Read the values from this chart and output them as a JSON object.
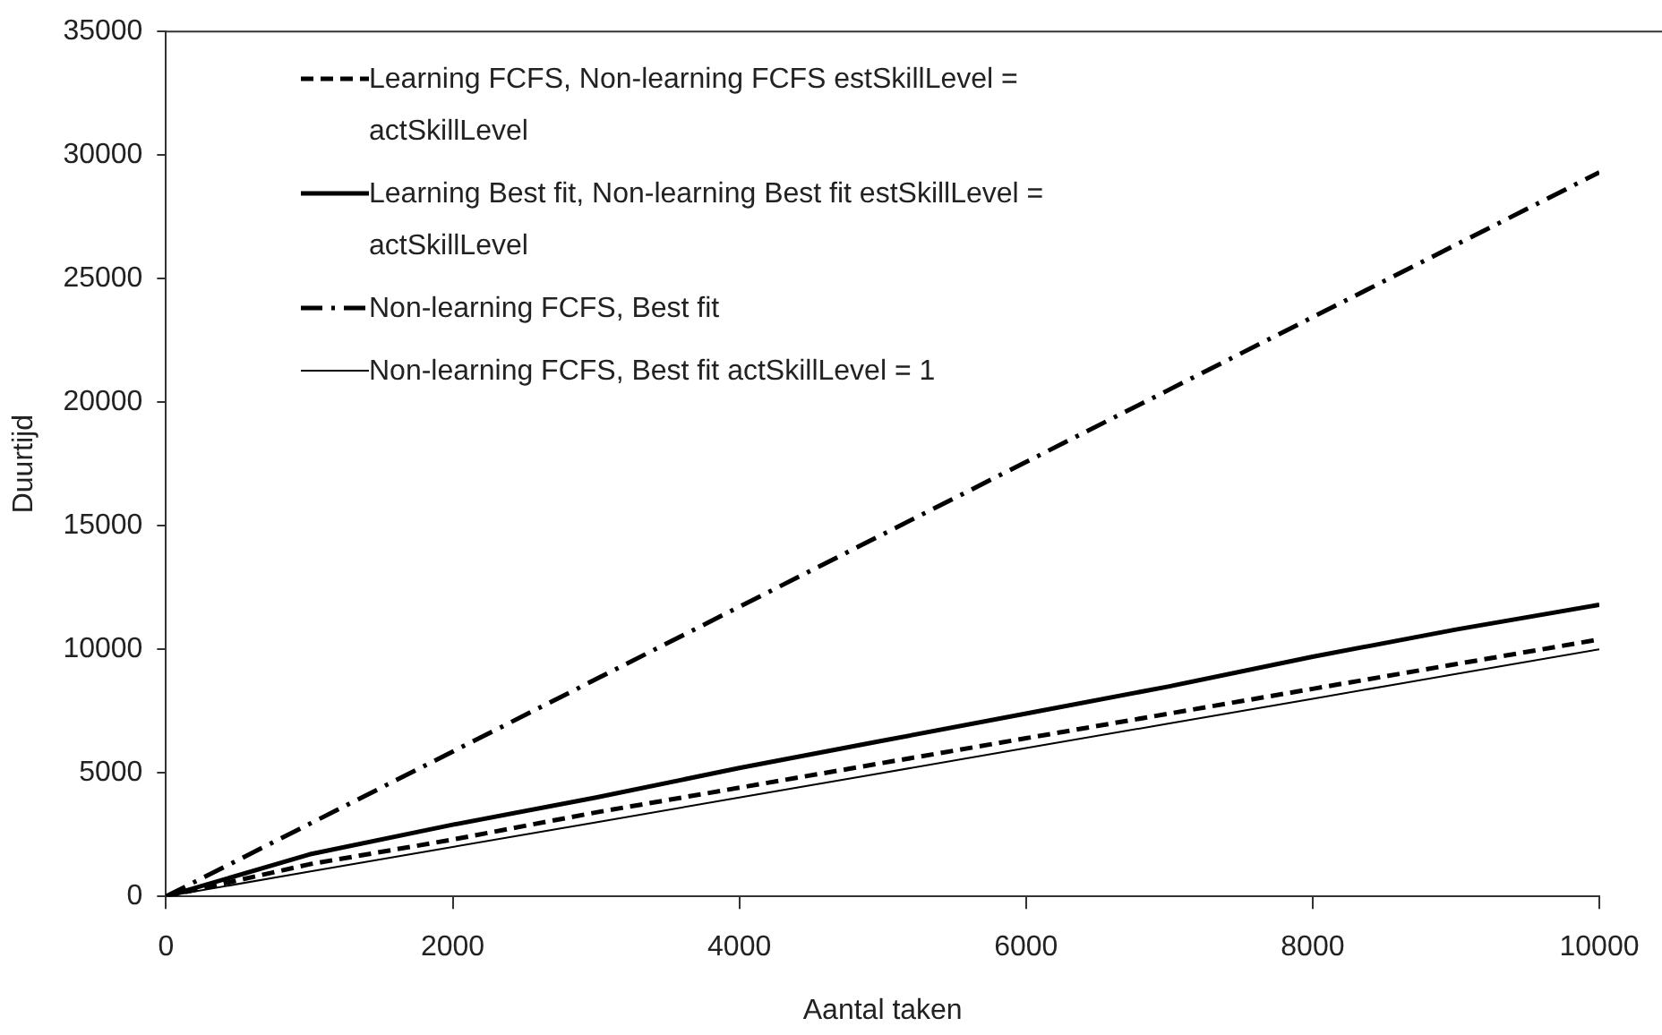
{
  "chart_data": {
    "type": "line",
    "xlabel": "Aantal taken",
    "ylabel": "Duurtijd",
    "x": [
      0,
      1000,
      2000,
      3000,
      4000,
      5000,
      6000,
      7000,
      8000,
      9000,
      10000
    ],
    "xlim": [
      0,
      10000
    ],
    "xticks": [
      0,
      2000,
      4000,
      6000,
      8000,
      10000
    ],
    "ylim": [
      0,
      35000
    ],
    "yticks": [
      0,
      5000,
      10000,
      15000,
      20000,
      25000,
      30000,
      35000
    ],
    "grid": false,
    "legend": "top left",
    "marker": "none",
    "series": [
      {
        "name": "Learning FCFS, Non-learning FCFS estSkillLevel = actSkillLevel",
        "color": "#000000",
        "line_style": "dashed",
        "values": [
          0,
          1300,
          2300,
          3400,
          4400,
          5400,
          6400,
          7400,
          8400,
          9400,
          10400
        ]
      },
      {
        "name": "Learning Best fit, Non-learning Best fit estSkillLevel = actSkillLevel",
        "color": "#000000",
        "line_style": "solid",
        "values": [
          0,
          1700,
          2900,
          4000,
          5200,
          6300,
          7400,
          8500,
          9700,
          10800,
          11800
        ]
      },
      {
        "name": "Non-learning FCFS, Best fit",
        "color": "#000000",
        "line_style": "dashdot",
        "values": [
          0,
          2930,
          5860,
          8790,
          11720,
          14650,
          17580,
          20510,
          23440,
          26370,
          29300
        ]
      },
      {
        "name": "Non-learning FCFS, Best fit actSkillLevel = 1",
        "color": "#000000",
        "line_style": "solid",
        "values": [
          0,
          1000,
          2000,
          3000,
          4000,
          5000,
          6000,
          7000,
          8000,
          9000,
          10000
        ]
      }
    ]
  }
}
